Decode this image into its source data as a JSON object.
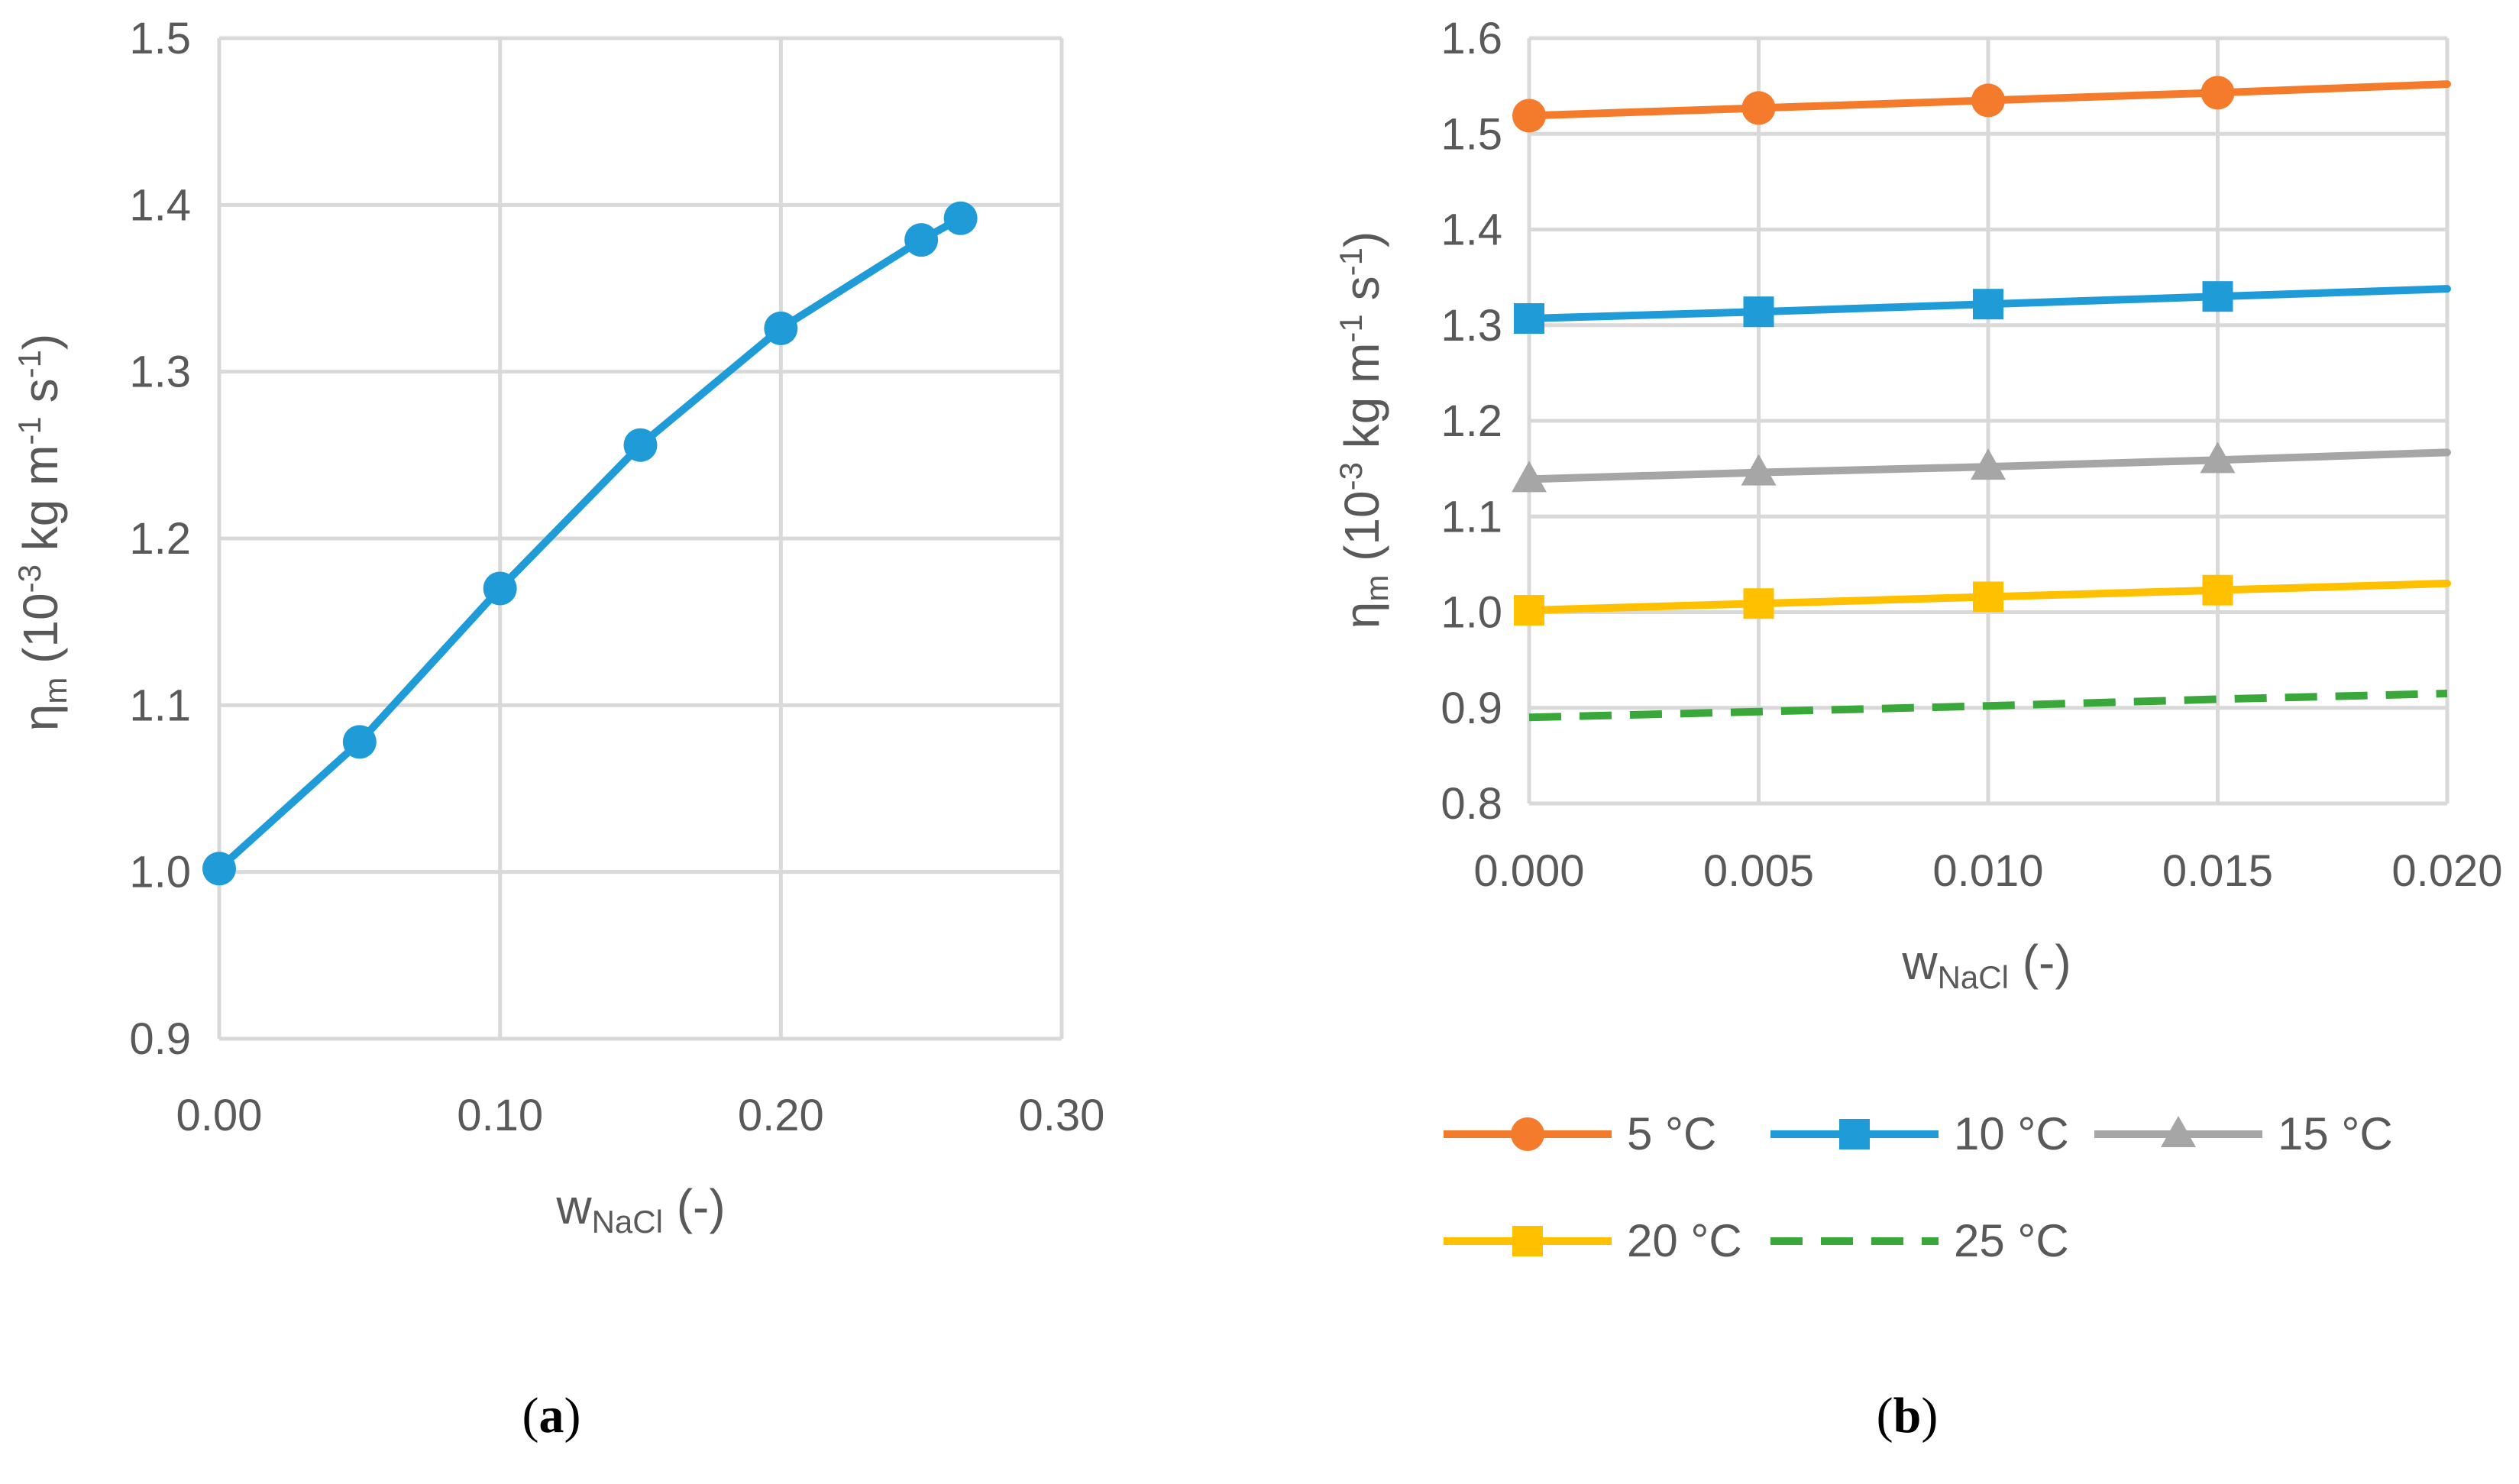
{
  "chart_data": [
    {
      "panel": "(a)",
      "type": "line",
      "xlabel": {
        "main": "w",
        "sub": "NaCl",
        "tail": " (-)"
      },
      "ylabel": {
        "main": "η",
        "sub": "m",
        "tail": " (10",
        "sup1": "-3",
        "mid": " kg m",
        "sup2": "-1",
        "mid2": " s",
        "sup3": "-1",
        "end": ")"
      },
      "xlim": [
        0,
        0.3
      ],
      "ylim": [
        0.9,
        1.5
      ],
      "xticks": [
        "0.00",
        "0.10",
        "0.20",
        "0.30"
      ],
      "yticks": [
        "0.9",
        "1.0",
        "1.1",
        "1.2",
        "1.3",
        "1.4",
        "1.5"
      ],
      "grid": true,
      "series": [
        {
          "color": "#1f9bd8",
          "marker": "circle",
          "x": [
            0.0,
            0.05,
            0.1,
            0.15,
            0.2,
            0.25,
            0.264
          ],
          "y": [
            1.002,
            1.078,
            1.17,
            1.256,
            1.326,
            1.379,
            1.392
          ]
        }
      ]
    },
    {
      "panel": "(b)",
      "type": "line",
      "xlabel": {
        "main": "w",
        "sub": "NaCl",
        "tail": " (-)"
      },
      "ylabel": {
        "main": "η",
        "sub": "m",
        "tail": " (10",
        "sup1": "-3",
        "mid": " kg m",
        "sup2": "-1",
        "mid2": " s",
        "sup3": "-1",
        "end": ")"
      },
      "xlim": [
        0,
        0.02
      ],
      "ylim": [
        0.8,
        1.6
      ],
      "xticks": [
        "0.000",
        "0.005",
        "0.010",
        "0.015",
        "0.020"
      ],
      "yticks": [
        "0.8",
        "0.9",
        "1.0",
        "1.1",
        "1.2",
        "1.3",
        "1.4",
        "1.5",
        "1.6"
      ],
      "grid": true,
      "legend_position": "bottom",
      "series": [
        {
          "name": "5 °C",
          "color": "#f47b2b",
          "marker": "circle",
          "dash": false,
          "x": [
            0,
            0.005,
            0.01,
            0.015,
            0.02
          ],
          "y": [
            1.519,
            1.527,
            1.535,
            1.543,
            1.552
          ]
        },
        {
          "name": "10 °C",
          "color": "#1f9bd8",
          "marker": "square",
          "dash": false,
          "x": [
            0,
            0.005,
            0.01,
            0.015,
            0.02
          ],
          "y": [
            1.307,
            1.314,
            1.322,
            1.33,
            1.338
          ]
        },
        {
          "name": "15 °C",
          "color": "#a6a6a6",
          "marker": "triangle",
          "dash": false,
          "x": [
            0,
            0.005,
            0.01,
            0.015,
            0.02
          ],
          "y": [
            1.139,
            1.146,
            1.152,
            1.159,
            1.167
          ]
        },
        {
          "name": "20 °C",
          "color": "#ffc000",
          "marker": "square",
          "dash": false,
          "x": [
            0,
            0.005,
            0.01,
            0.015,
            0.02
          ],
          "y": [
            1.002,
            1.009,
            1.016,
            1.023,
            1.03
          ]
        },
        {
          "name": "25 °C",
          "color": "#3aa73a",
          "marker": "none",
          "dash": true,
          "x": [
            0,
            0.005,
            0.01,
            0.015,
            0.02
          ],
          "y": [
            0.89,
            0.896,
            0.902,
            0.909,
            0.915
          ]
        }
      ]
    }
  ]
}
